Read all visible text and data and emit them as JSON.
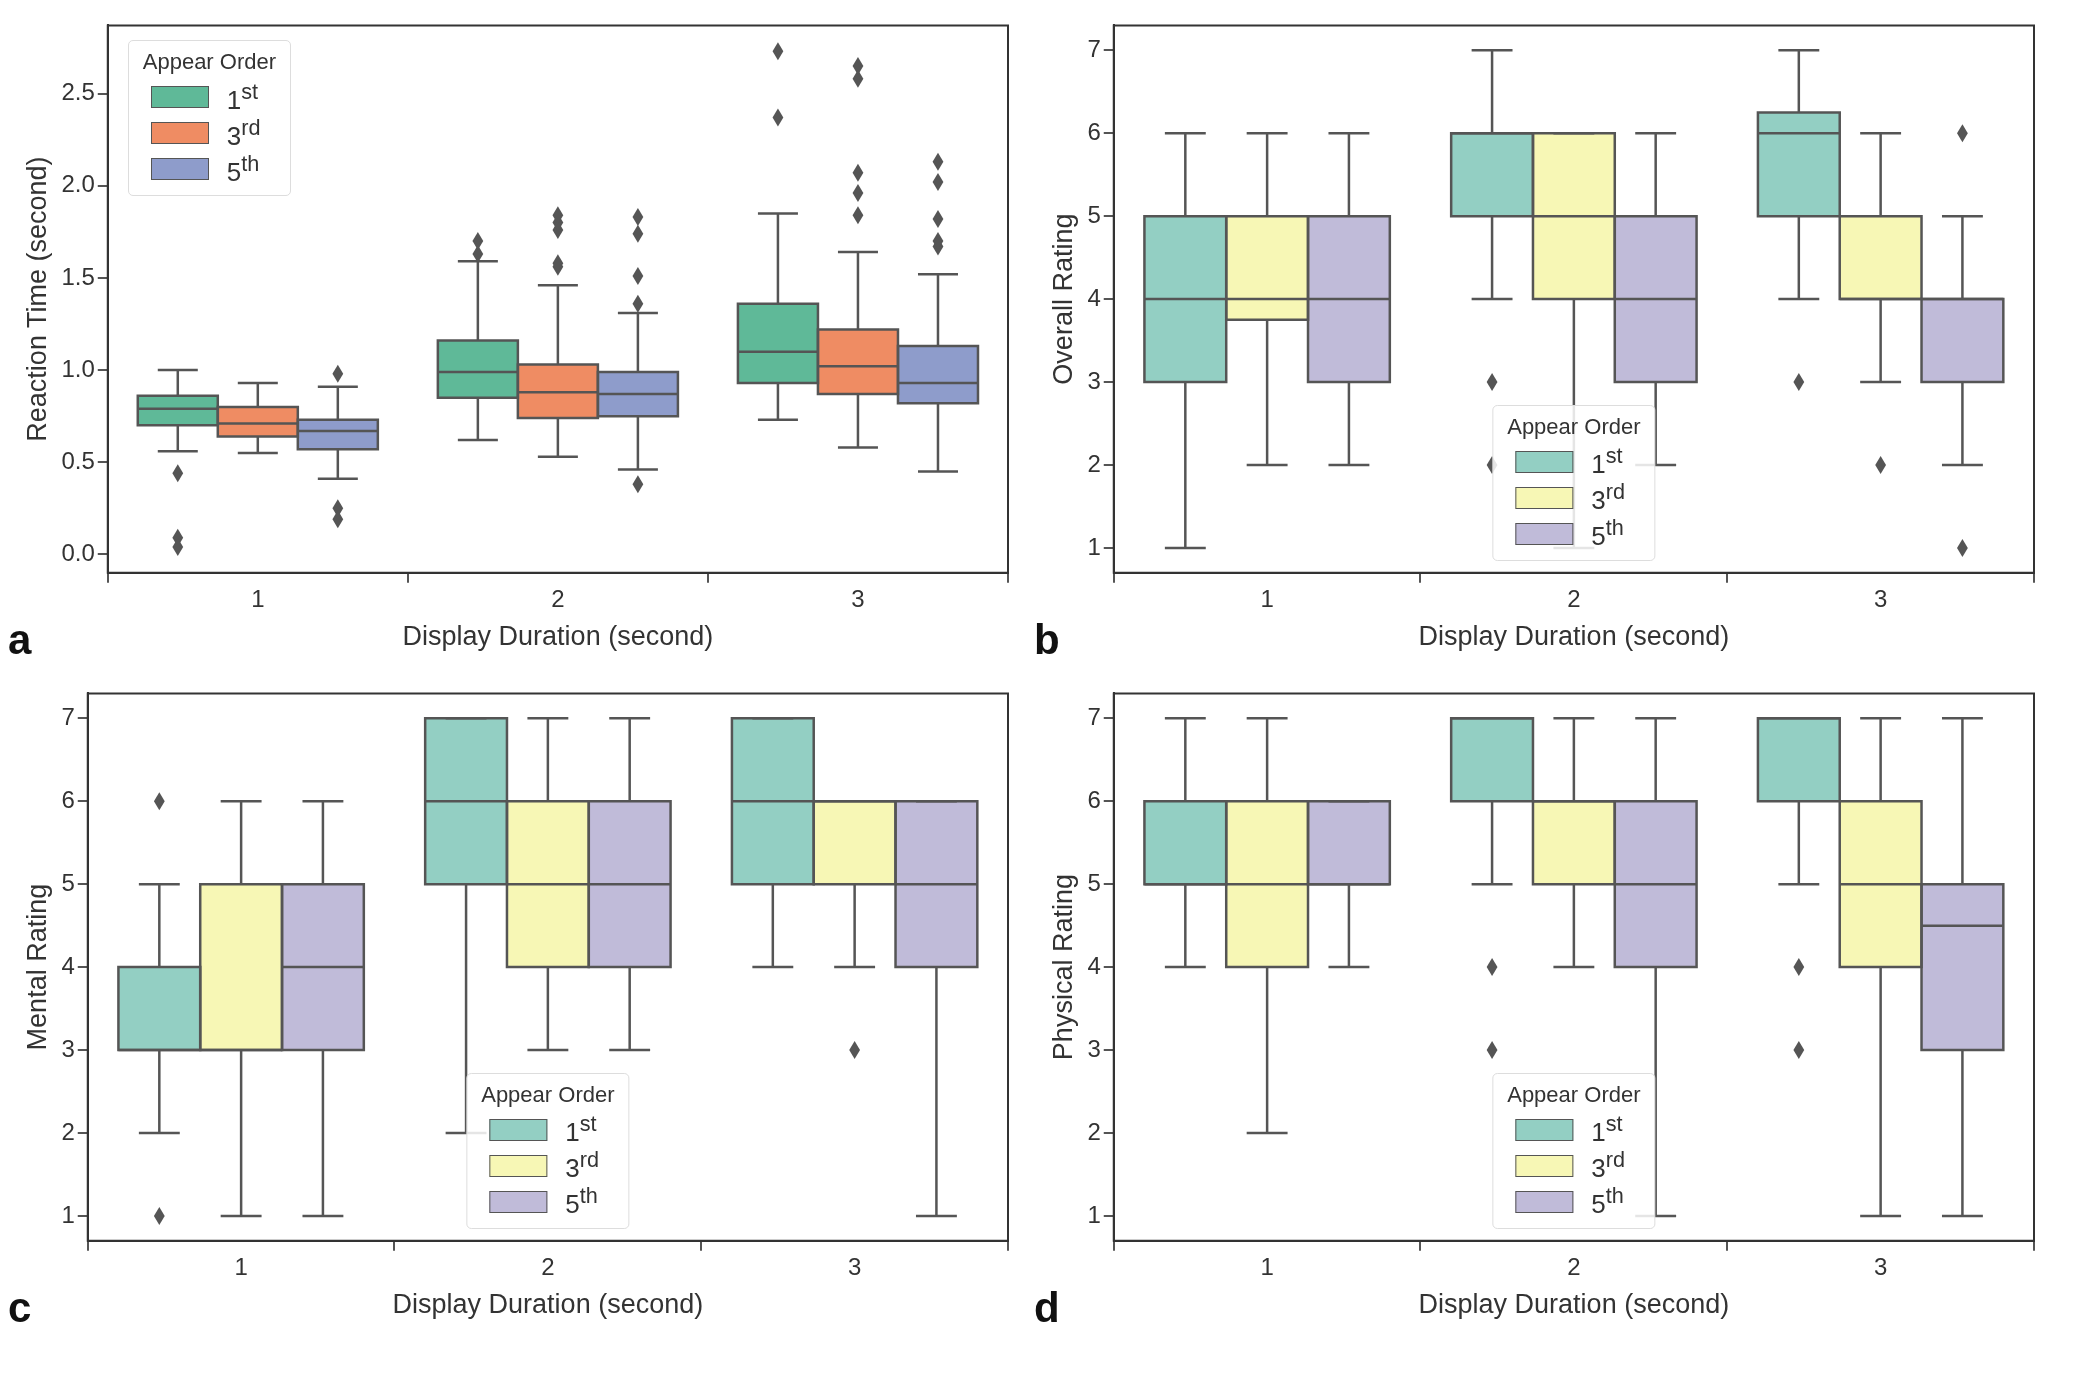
{
  "chart_data": [
    {
      "type": "box",
      "categories": [
        "1",
        "2",
        "3"
      ],
      "xlabel": "Display Duration (second)",
      "ylabel": "Reaction Time (second)",
      "legend_title": "Appear Order",
      "legend": "top left",
      "grid": false,
      "annotations": [
        "a"
      ],
      "ylim": [
        -0.1,
        2.87
      ],
      "yticks": [
        {
          "value": 0,
          "label": "0.0"
        },
        0.5,
        {
          "value": 1,
          "label": "1.0"
        },
        1.5,
        {
          "value": 2,
          "label": "2.0"
        },
        2.5
      ],
      "series": [
        {
          "name": "1$^{st}$",
          "color": "#5fb998",
          "boxes": [
            {
              "low": 0.56,
              "q1": 0.7,
              "median": 0.79,
              "q3": 0.86,
              "high": 1.0,
              "outliers": [
                0.44,
                0.09,
                0.04
              ]
            },
            {
              "low": 0.62,
              "q1": 0.85,
              "median": 0.99,
              "q3": 1.16,
              "high": 1.59,
              "outliers": [
                1.63,
                1.7
              ]
            },
            {
              "low": 0.73,
              "q1": 0.93,
              "median": 1.1,
              "q3": 1.36,
              "high": 1.85,
              "outliers": [
                2.37,
                2.73
              ]
            }
          ]
        },
        {
          "name": "3$^{rd}$",
          "color": "#ef8c63",
          "boxes": [
            {
              "low": 0.55,
              "q1": 0.64,
              "median": 0.71,
              "q3": 0.8,
              "high": 0.93
            },
            {
              "low": 0.53,
              "q1": 0.74,
              "median": 0.88,
              "q3": 1.03,
              "high": 1.46,
              "outliers": [
                1.56,
                1.58,
                1.76,
                1.8,
                1.84
              ]
            },
            {
              "low": 0.58,
              "q1": 0.87,
              "median": 1.02,
              "q3": 1.22,
              "high": 1.64,
              "outliers": [
                1.84,
                1.96,
                2.07,
                2.58,
                2.65
              ]
            }
          ]
        },
        {
          "name": "5$^{th}$",
          "color": "#8e9ccb",
          "boxes": [
            {
              "low": 0.41,
              "q1": 0.57,
              "median": 0.67,
              "q3": 0.73,
              "high": 0.91,
              "outliers": [
                0.98,
                0.25,
                0.19
              ]
            },
            {
              "low": 0.46,
              "q1": 0.75,
              "median": 0.87,
              "q3": 0.99,
              "high": 1.31,
              "outliers": [
                1.36,
                1.51,
                1.74,
                1.83,
                0.38
              ]
            },
            {
              "low": 0.45,
              "q1": 0.82,
              "median": 0.93,
              "q3": 1.13,
              "high": 1.52,
              "outliers": [
                1.67,
                1.7,
                1.82,
                2.02,
                2.13
              ]
            }
          ]
        }
      ]
    },
    {
      "type": "box",
      "categories": [
        "1",
        "2",
        "3"
      ],
      "xlabel": "Display Duration (second)",
      "ylabel": "Overall Rating",
      "legend_title": "Appear Order",
      "legend": "bottom",
      "grid": false,
      "annotations": [
        "b"
      ],
      "ylim": [
        0.7,
        7.3
      ],
      "yticks": [
        1,
        2,
        3,
        4,
        5,
        6,
        7
      ],
      "series": [
        {
          "name": "1$^{st}$",
          "color": "#93cfc3",
          "boxes": [
            {
              "low": 1,
              "q1": 3,
              "median": 4,
              "q3": 5,
              "high": 6
            },
            {
              "low": 4,
              "q1": 5,
              "median": 6,
              "q3": 6,
              "high": 7,
              "outliers": [
                3,
                2
              ]
            },
            {
              "low": 4,
              "q1": 5,
              "median": 6,
              "q3": 6.25,
              "high": 7,
              "outliers": [
                3
              ]
            }
          ]
        },
        {
          "name": "3$^{rd}$",
          "color": "#f7f7b5",
          "boxes": [
            {
              "low": 2,
              "q1": 3.75,
              "median": 4,
              "q3": 5,
              "high": 6
            },
            {
              "low": 1,
              "q1": 4,
              "median": 5,
              "q3": 6,
              "high": 6
            },
            {
              "low": 3,
              "q1": 4,
              "median": 4,
              "q3": 5,
              "high": 6,
              "outliers": [
                2
              ]
            }
          ]
        },
        {
          "name": "5$^{th}$",
          "color": "#c0bbd9",
          "boxes": [
            {
              "low": 2,
              "q1": 3,
              "median": 4,
              "q3": 5,
              "high": 6
            },
            {
              "low": 2,
              "q1": 3,
              "median": 4,
              "q3": 5,
              "high": 6
            },
            {
              "low": 2,
              "q1": 3,
              "median": 4,
              "q3": 4,
              "high": 5,
              "outliers": [
                6,
                1
              ]
            }
          ]
        }
      ]
    },
    {
      "type": "box",
      "categories": [
        "1",
        "2",
        "3"
      ],
      "xlabel": "Display Duration (second)",
      "ylabel": "Mental Rating",
      "legend_title": "Appear Order",
      "legend": "bottom",
      "grid": false,
      "annotations": [
        "c"
      ],
      "ylim": [
        0.7,
        7.3
      ],
      "yticks": [
        1,
        2,
        3,
        4,
        5,
        6,
        7
      ],
      "series": [
        {
          "name": "1$^{st}$",
          "color": "#93cfc3",
          "boxes": [
            {
              "low": 2,
              "q1": 3,
              "median": 3,
              "q3": 4,
              "high": 5,
              "outliers": [
                6,
                1
              ]
            },
            {
              "low": 2,
              "q1": 5,
              "median": 6,
              "q3": 7,
              "high": 7
            },
            {
              "low": 4,
              "q1": 5,
              "median": 6,
              "q3": 7,
              "high": 7
            }
          ]
        },
        {
          "name": "3$^{rd}$",
          "color": "#f7f7b5",
          "boxes": [
            {
              "low": 1,
              "q1": 3,
              "median": 3,
              "q3": 5,
              "high": 6
            },
            {
              "low": 3,
              "q1": 4,
              "median": 5,
              "q3": 6,
              "high": 7
            },
            {
              "low": 4,
              "q1": 5,
              "median": 6,
              "q3": 6,
              "high": 6,
              "outliers": [
                3
              ]
            }
          ]
        },
        {
          "name": "5$^{th}$",
          "color": "#c0bbd9",
          "boxes": [
            {
              "low": 1,
              "q1": 3,
              "median": 4,
              "q3": 5,
              "high": 6
            },
            {
              "low": 3,
              "q1": 4,
              "median": 5,
              "q3": 6,
              "high": 7
            },
            {
              "low": 1,
              "q1": 4,
              "median": 5,
              "q3": 6,
              "high": 6
            }
          ]
        }
      ]
    },
    {
      "type": "box",
      "categories": [
        "1",
        "2",
        "3"
      ],
      "xlabel": "Display Duration (second)",
      "ylabel": "Physical Rating",
      "legend_title": "Appear Order",
      "legend": "bottom",
      "grid": false,
      "annotations": [
        "d"
      ],
      "ylim": [
        0.7,
        7.3
      ],
      "yticks": [
        1,
        2,
        3,
        4,
        5,
        6,
        7
      ],
      "series": [
        {
          "name": "1$^{st}$",
          "color": "#93cfc3",
          "boxes": [
            {
              "low": 4,
              "q1": 5,
              "median": 5,
              "q3": 6,
              "high": 7
            },
            {
              "low": 5,
              "q1": 6,
              "median": 7,
              "q3": 7,
              "high": 7,
              "outliers": [
                4,
                3
              ]
            },
            {
              "low": 5,
              "q1": 6,
              "median": 7,
              "q3": 7,
              "high": 7,
              "outliers": [
                4,
                3
              ]
            }
          ]
        },
        {
          "name": "3$^{rd}$",
          "color": "#f7f7b5",
          "boxes": [
            {
              "low": 2,
              "q1": 4,
              "median": 5,
              "q3": 6,
              "high": 7
            },
            {
              "low": 4,
              "q1": 5,
              "median": 6,
              "q3": 6,
              "high": 7
            },
            {
              "low": 1,
              "q1": 4,
              "median": 5,
              "q3": 6,
              "high": 7
            }
          ]
        },
        {
          "name": "5$^{th}$",
          "color": "#c0bbd9",
          "boxes": [
            {
              "low": 4,
              "q1": 5,
              "median": 5,
              "q3": 6,
              "high": 6
            },
            {
              "low": 1,
              "q1": 4,
              "median": 5,
              "q3": 6,
              "high": 7
            },
            {
              "low": 1,
              "q1": 3,
              "median": 4.5,
              "q3": 5,
              "high": 7
            }
          ]
        }
      ]
    }
  ]
}
